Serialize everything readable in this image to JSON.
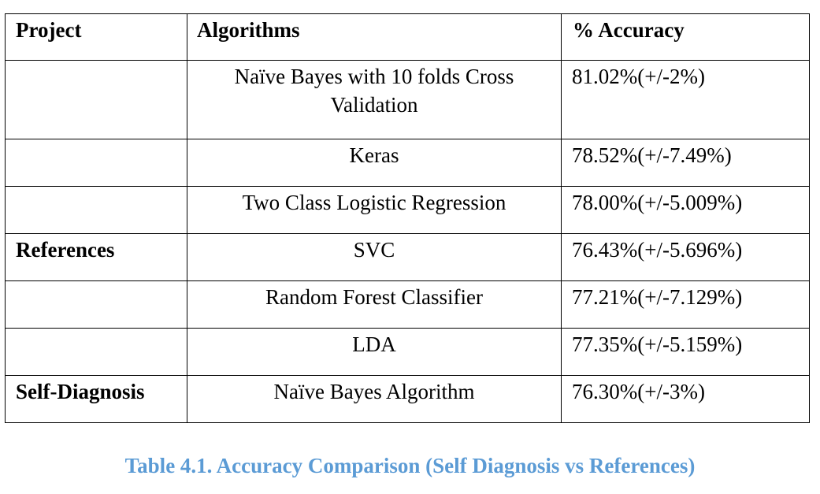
{
  "table": {
    "headers": {
      "project": "Project",
      "algorithms": "Algorithms",
      "accuracy": "% Accuracy"
    },
    "rows": [
      {
        "project": "",
        "algorithm": "Naïve Bayes with 10 folds Cross Validation",
        "accuracy": "81.02%(+/-2%)"
      },
      {
        "project": "",
        "algorithm": "Keras",
        "accuracy": "78.52%(+/-7.49%)"
      },
      {
        "project": "",
        "algorithm": "Two Class Logistic Regression",
        "accuracy": "78.00%(+/-5.009%)"
      },
      {
        "project": "References",
        "algorithm": "SVC",
        "accuracy": "76.43%(+/-5.696%)"
      },
      {
        "project": "",
        "algorithm": "Random Forest Classifier",
        "accuracy": "77.21%(+/-7.129%)"
      },
      {
        "project": "",
        "algorithm": "LDA",
        "accuracy": "77.35%(+/-5.159%)"
      },
      {
        "project": "Self-Diagnosis",
        "algorithm": "Naïve Bayes Algorithm",
        "accuracy": "76.30%(+/-3%)"
      }
    ]
  },
  "caption": "Table 4.1. Accuracy Comparison (Self Diagnosis vs References)",
  "colors": {
    "caption": "#5b9bd5",
    "border": "#000000"
  }
}
